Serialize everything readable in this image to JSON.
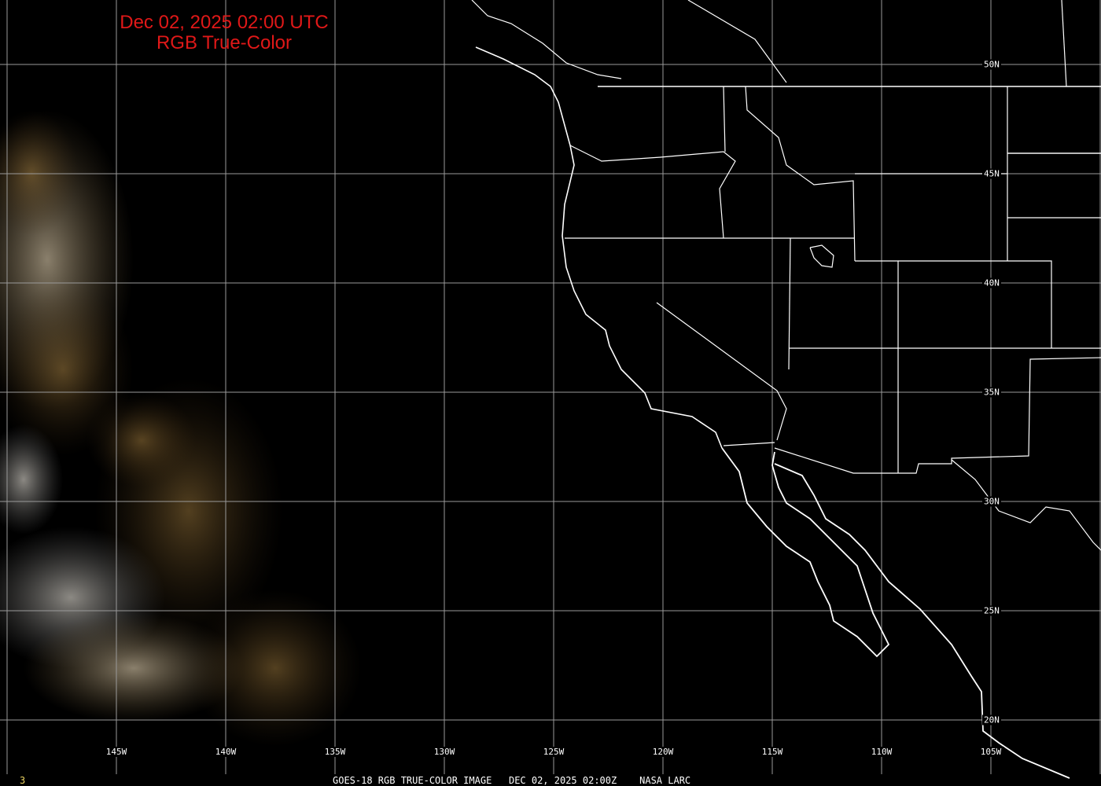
{
  "title": {
    "line1": "Dec 02, 2025 02:00 UTC",
    "line2": "RGB True-Color"
  },
  "caption": "GOES-18 RGB TRUE-COLOR IMAGE   DEC 02, 2025 02:00Z    NASA LARC",
  "frame_number": "3",
  "longitude_labels": [
    "145W",
    "140W",
    "135W",
    "130W",
    "125W",
    "120W",
    "115W",
    "110W",
    "105W"
  ],
  "latitude_labels": [
    "50N",
    "45N",
    "40N",
    "35N",
    "30N",
    "25N",
    "20N"
  ],
  "colors": {
    "title": "#e01818",
    "grid": "#9a9a9a",
    "borders": "#ffffff",
    "frame_number": "#e8d060"
  }
}
